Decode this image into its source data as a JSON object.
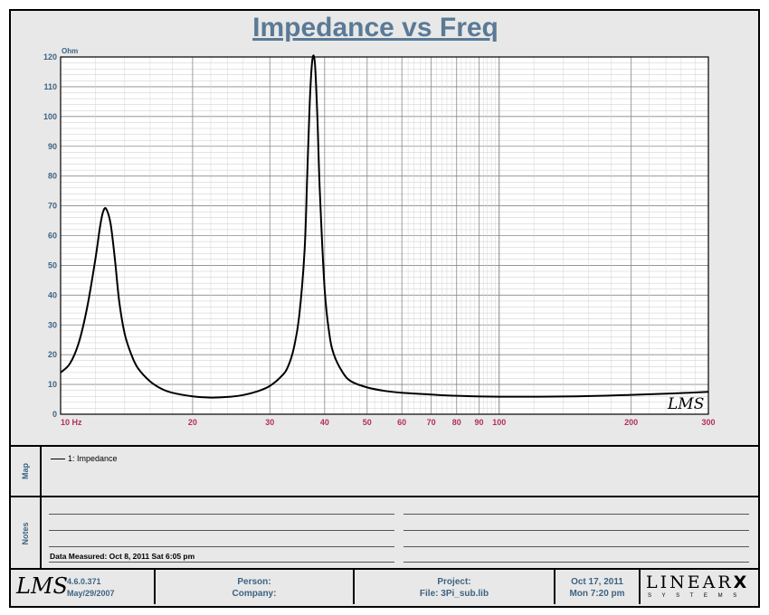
{
  "chart_data": {
    "type": "line",
    "title": "Impedance vs Freq",
    "xlabel": "",
    "ylabel": "Ohm",
    "x_scale": "log",
    "xlim": [
      10,
      300
    ],
    "ylim": [
      0,
      120
    ],
    "x_ticks": [
      10,
      20,
      30,
      40,
      50,
      60,
      70,
      80,
      90,
      100,
      200,
      300
    ],
    "x_tick_labels": [
      "10  Hz",
      "20",
      "30",
      "40",
      "50",
      "60",
      "70",
      "80",
      "90",
      "100",
      "200",
      "300"
    ],
    "y_ticks": [
      0,
      10,
      20,
      30,
      40,
      50,
      60,
      70,
      80,
      90,
      100,
      110,
      120
    ],
    "grid": true,
    "series": [
      {
        "name": "1: Impedance",
        "color": "#000000",
        "x": [
          10,
          10.5,
          11,
          11.5,
          12,
          12.3,
          12.5,
          12.7,
          13,
          13.3,
          13.6,
          14,
          14.5,
          15,
          16,
          17,
          18,
          20,
          22,
          24,
          26,
          28,
          30,
          32,
          33,
          34,
          35,
          36,
          36.5,
          37,
          37.5,
          38,
          38.5,
          39,
          40,
          41,
          42,
          44,
          46,
          50,
          55,
          60,
          70,
          80,
          100,
          150,
          200,
          250,
          300
        ],
        "y": [
          14,
          17,
          24,
          36,
          52,
          63,
          68,
          69,
          64,
          52,
          38,
          27,
          20,
          15.5,
          11,
          8.5,
          7.2,
          6,
          5.6,
          5.8,
          6.4,
          7.6,
          9.5,
          13,
          16,
          22,
          33,
          55,
          80,
          105,
          119,
          118,
          100,
          75,
          42,
          27,
          20,
          14,
          11,
          9,
          7.8,
          7.2,
          6.6,
          6.2,
          5.9,
          6,
          6.5,
          7,
          7.5
        ]
      }
    ]
  },
  "map": {
    "label": "Map",
    "legend": "1: Impedance"
  },
  "notes": {
    "label": "Notes",
    "measured": "Data Measured: Oct  8, 2011  Sat  6:05 pm"
  },
  "watermark": "LMS",
  "footer": {
    "logo": "LMS",
    "version": "4.6.0.371",
    "version_date": "May/29/2007",
    "person": "Person:",
    "company": "Company:",
    "project": "Project:",
    "file": "File: 3Pi_sub.lib",
    "date": "Oct 17, 2011",
    "time": "Mon  7:20 pm",
    "brand": "LINEAR",
    "brand_x": "X",
    "brand_sub": "S Y S T E M S"
  }
}
